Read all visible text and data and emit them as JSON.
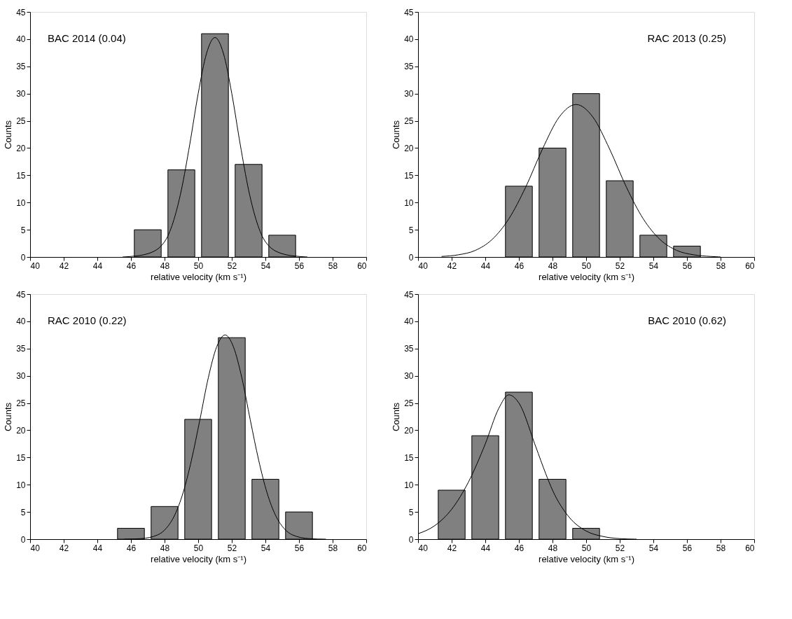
{
  "chart_data": [
    {
      "type": "histogram",
      "bins": [
        46,
        48,
        50,
        52,
        54,
        56
      ],
      "values": [
        5,
        16,
        41,
        17,
        4
      ],
      "color": "#808080",
      "xlim": [
        40,
        60
      ],
      "ylim": [
        0,
        45
      ],
      "xticks": [
        40,
        42,
        44,
        46,
        48,
        50,
        52,
        54,
        56,
        58,
        60
      ],
      "yticks": [
        0,
        5,
        10,
        15,
        20,
        25,
        30,
        35,
        40,
        45
      ],
      "xlabel": "relative velocity (km s⁻¹)",
      "ylabel": "Counts",
      "annotations": [
        "BAC 2014 (0.04)"
      ],
      "series": [
        {
          "type": "line",
          "color": "#000000",
          "x": [
            45.5,
            46,
            47,
            48,
            48.5,
            49,
            49.5,
            50,
            50.5,
            51,
            51.5,
            52,
            52.5,
            53,
            53.5,
            54,
            55,
            56,
            56.5
          ],
          "values": [
            0,
            0.1,
            0.6,
            2.8,
            6.3,
            12.3,
            20.7,
            30,
            37.4,
            40.3,
            37.4,
            30,
            20.7,
            12.3,
            6.3,
            2.8,
            0.6,
            0.1,
            0
          ]
        }
      ]
    },
    {
      "type": "histogram",
      "bins": [
        45,
        47,
        49,
        51,
        53,
        55,
        57
      ],
      "values": [
        13,
        20,
        30,
        14,
        4,
        2
      ],
      "color": "#808080",
      "xlim": [
        40,
        60
      ],
      "ylim": [
        0,
        45
      ],
      "xticks": [
        40,
        42,
        44,
        46,
        48,
        50,
        52,
        54,
        56,
        58,
        60
      ],
      "yticks": [
        0,
        5,
        10,
        15,
        20,
        25,
        30,
        35,
        40,
        45
      ],
      "xlabel": "relative velocity (km s⁻¹)",
      "ylabel": "Counts",
      "annotations": [
        "RAC 2013 (0.25)"
      ],
      "series": [
        {
          "type": "line",
          "color": "#000000",
          "x": [
            41.4,
            42.4,
            43.4,
            44.4,
            45.4,
            46.4,
            47.4,
            48.4,
            49.4,
            50.4,
            51.4,
            52.4,
            53.4,
            54.4,
            55.4,
            56.4,
            57.4,
            58
          ],
          "values": [
            0.1,
            0.4,
            1.2,
            3.2,
            7,
            12.8,
            19.8,
            25.7,
            28,
            25.7,
            19.8,
            12.8,
            7,
            3.2,
            1.2,
            0.4,
            0.1,
            0
          ]
        }
      ]
    },
    {
      "type": "histogram",
      "bins": [
        45,
        47,
        49,
        51,
        53,
        55,
        57
      ],
      "values": [
        2,
        6,
        22,
        37,
        11,
        5
      ],
      "color": "#808080",
      "xlim": [
        40,
        60
      ],
      "ylim": [
        0,
        45
      ],
      "xticks": [
        40,
        42,
        44,
        46,
        48,
        50,
        52,
        54,
        56,
        58,
        60
      ],
      "yticks": [
        0,
        5,
        10,
        15,
        20,
        25,
        30,
        35,
        40,
        45
      ],
      "xlabel": "relative velocity (km s⁻¹)",
      "ylabel": "Counts",
      "annotations": [
        "RAC 2010 (0.22)"
      ],
      "series": [
        {
          "type": "line",
          "color": "#000000",
          "x": [
            45.6,
            46.6,
            47.6,
            48.1,
            48.6,
            49.1,
            49.6,
            50.1,
            50.6,
            51.1,
            51.6,
            52.1,
            52.6,
            53.1,
            53.6,
            54.1,
            54.6,
            55.1,
            55.6,
            56.6,
            57.6
          ],
          "values": [
            0,
            0.1,
            0.8,
            2,
            4.4,
            8.5,
            14.5,
            21.9,
            29.6,
            35.3,
            37.5,
            35.3,
            29.6,
            21.9,
            14.5,
            8.5,
            4.4,
            2,
            0.8,
            0.1,
            0
          ]
        }
      ]
    },
    {
      "type": "histogram",
      "bins": [
        41,
        43,
        45,
        47,
        49,
        51
      ],
      "values": [
        9,
        19,
        27,
        11,
        2
      ],
      "color": "#808080",
      "xlim": [
        40,
        60
      ],
      "ylim": [
        0,
        45
      ],
      "xticks": [
        40,
        42,
        44,
        46,
        48,
        50,
        52,
        54,
        56,
        58,
        60
      ],
      "yticks": [
        0,
        5,
        10,
        15,
        20,
        25,
        30,
        35,
        40,
        45
      ],
      "xlabel": "relative velocity (km s⁻¹)",
      "ylabel": "Counts",
      "annotations": [
        "BAC 2010 (0.62)"
      ],
      "series": [
        {
          "type": "line",
          "color": "#000000",
          "x": [
            40,
            41,
            42,
            43,
            44,
            44.8,
            45.4,
            46,
            47,
            47.6,
            48,
            49,
            50,
            51,
            52,
            53
          ],
          "values": [
            1,
            2.5,
            5.5,
            10.5,
            17.5,
            24,
            26.5,
            25,
            17,
            12,
            9,
            4,
            1.5,
            0.5,
            0.1,
            0
          ]
        }
      ]
    }
  ]
}
